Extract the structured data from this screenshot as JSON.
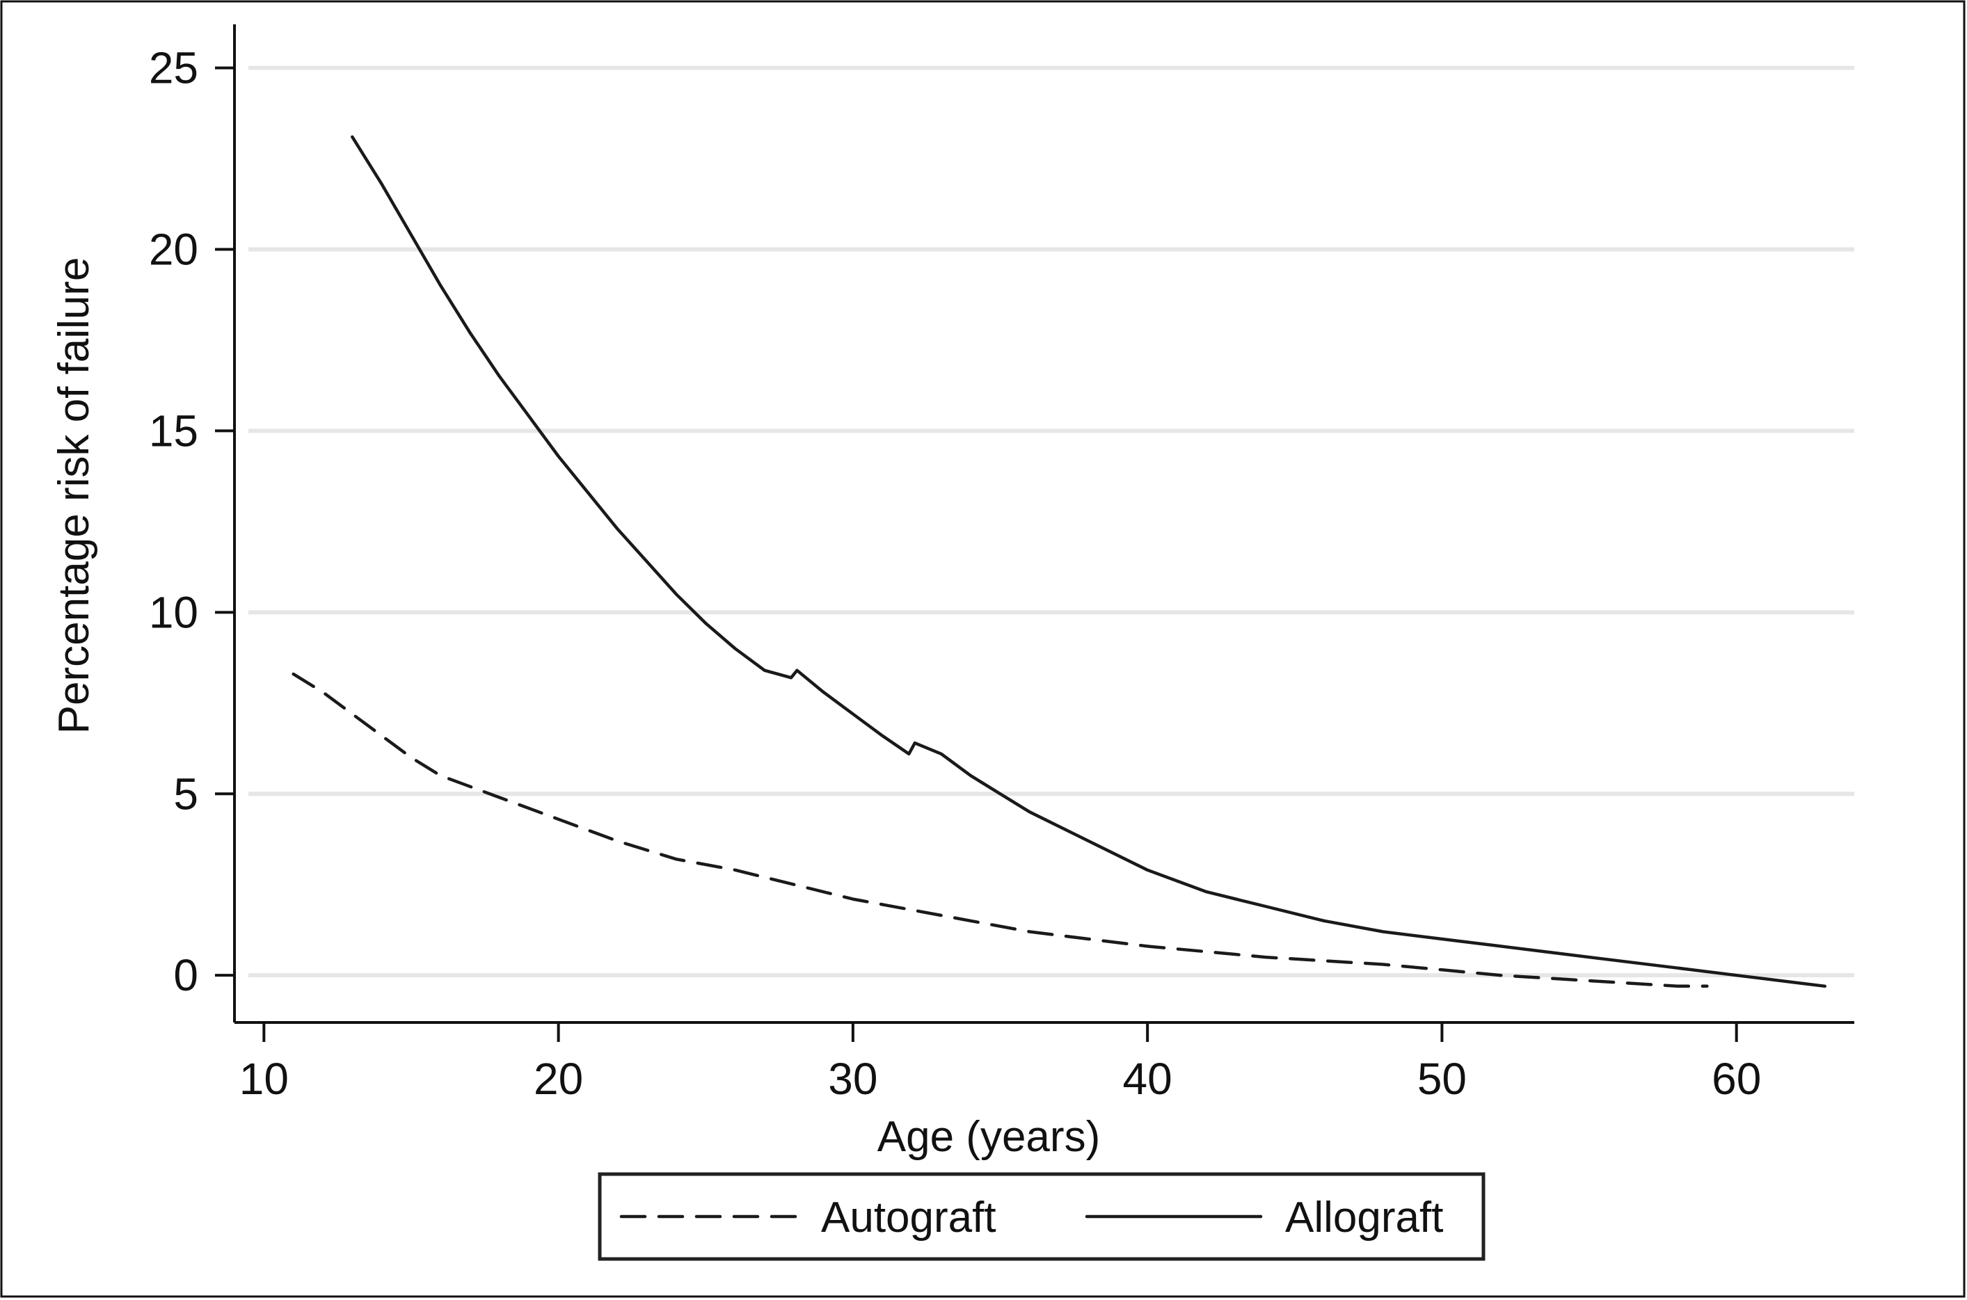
{
  "chart_data": {
    "type": "line",
    "title": "",
    "xlabel": "Age (years)",
    "ylabel": "Percentage risk of failure",
    "xlim": [
      9,
      64
    ],
    "ylim": [
      -1.3,
      26.2
    ],
    "xticks": [
      10,
      20,
      30,
      40,
      50,
      60
    ],
    "yticks": [
      0,
      5,
      10,
      15,
      20,
      25
    ],
    "grid": true,
    "legend_position": "bottom",
    "series": [
      {
        "name": "Autograft",
        "style": "dashed",
        "color": "#1a1a1a",
        "x": [
          11,
          12,
          13,
          14,
          15,
          16,
          17,
          18,
          19,
          20,
          22,
          24,
          26,
          28,
          30,
          32,
          34,
          36,
          38,
          40,
          42,
          44,
          46,
          48,
          50,
          52,
          54,
          56,
          58,
          59
        ],
        "y": [
          8.3,
          7.8,
          7.2,
          6.6,
          6.0,
          5.5,
          5.2,
          4.9,
          4.6,
          4.3,
          3.7,
          3.2,
          2.9,
          2.5,
          2.1,
          1.8,
          1.5,
          1.2,
          1.0,
          0.8,
          0.65,
          0.5,
          0.4,
          0.3,
          0.15,
          0.0,
          -0.1,
          -0.2,
          -0.3,
          -0.3
        ]
      },
      {
        "name": "Allograft",
        "style": "solid",
        "color": "#1a1a1a",
        "x": [
          13,
          14,
          15,
          16,
          17,
          18,
          19,
          20,
          21,
          22,
          23,
          24,
          25,
          26,
          27,
          27.9,
          28.1,
          29,
          30,
          31,
          31.9,
          32.1,
          33,
          34,
          35,
          36,
          38,
          40,
          42,
          44,
          46,
          48,
          50,
          52,
          54,
          56,
          58,
          60,
          62,
          63
        ],
        "y": [
          23.1,
          21.8,
          20.4,
          19.0,
          17.7,
          16.5,
          15.4,
          14.3,
          13.3,
          12.3,
          11.4,
          10.5,
          9.7,
          9.0,
          8.4,
          8.2,
          8.4,
          7.8,
          7.2,
          6.6,
          6.1,
          6.4,
          6.1,
          5.5,
          5.0,
          4.5,
          3.7,
          2.9,
          2.3,
          1.9,
          1.5,
          1.2,
          1.0,
          0.8,
          0.6,
          0.4,
          0.2,
          0.0,
          -0.2,
          -0.3
        ]
      }
    ]
  }
}
